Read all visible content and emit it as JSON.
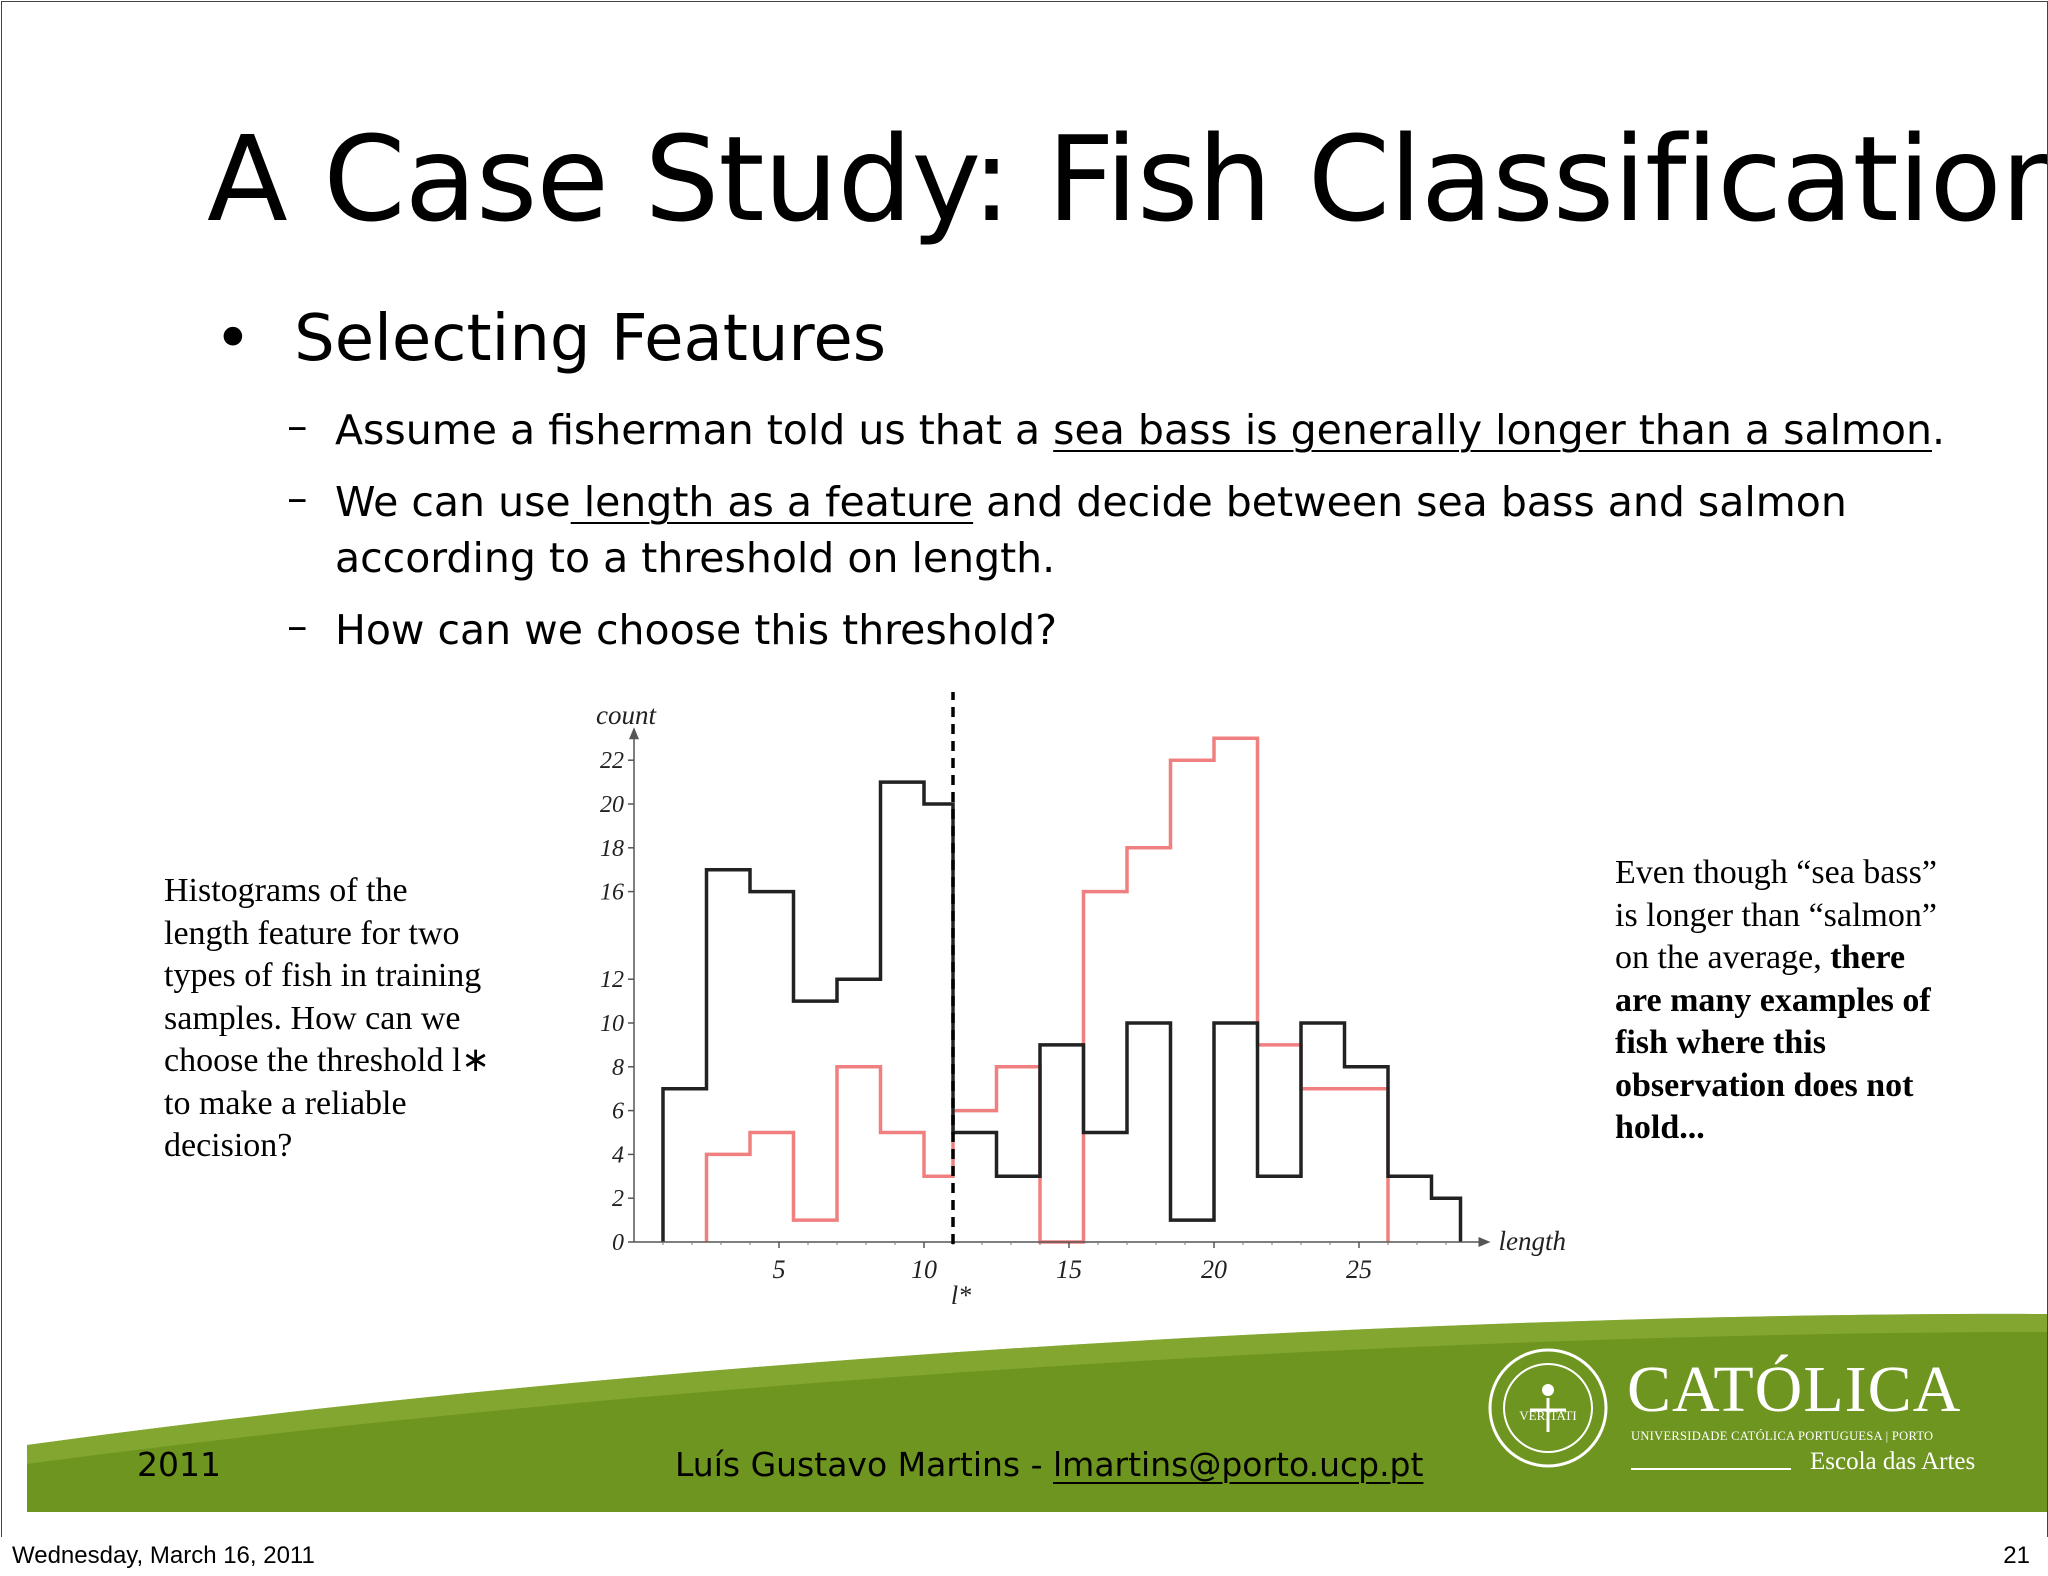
{
  "slide": {
    "title": "A Case Study: Fish Classification",
    "bullet": {
      "marker": "•",
      "text": "Selecting Features"
    },
    "subbullets": [
      {
        "dash": "–",
        "parts": [
          {
            "text": "Assume a fisherman told us that a ",
            "u": false
          },
          {
            "text": "sea bass is generally longer than a salmon",
            "u": true
          },
          {
            "text": ".",
            "u": false
          }
        ]
      },
      {
        "dash": "–",
        "parts": [
          {
            "text": "We can use",
            "u": false
          },
          {
            "text": " length as a feature",
            "u": true
          },
          {
            "text": " and decide between sea bass and salmon",
            "u": false
          }
        ],
        "line2": "according to a threshold on length."
      },
      {
        "dash": "–",
        "parts": [
          {
            "text": "How can we choose this threshold?",
            "u": false
          }
        ]
      }
    ],
    "left_note": "Histograms of the length feature for two types of fish in training samples. How can we choose the threshold l∗ to make a reliable decision?",
    "right_note": {
      "normal": "Even though “sea bass” is longer than “salmon” on the average, ",
      "bold": "there are many examples of fish where this observation does not hold..."
    },
    "footer": {
      "year": "2011",
      "author": "Luís Gustavo Martins - ",
      "email": "lmartins@porto.ucp.pt",
      "brand_name": "CATÓLICA",
      "brand_univ": "UNIVERSIDADE CATÓLICA PORTUGUESA | PORTO",
      "brand_school": "Escola das Artes",
      "seal_text": "VERITATI",
      "colors": {
        "bar": "#6e951f",
        "bar_light": "#8fb23a"
      }
    }
  },
  "status_bar": {
    "date": "Wednesday, March 16, 2011",
    "page": "21"
  },
  "chart_data": {
    "type": "bar",
    "subtype": "step-histogram",
    "xlabel": "length",
    "ylabel": "count",
    "xlim": [
      0,
      28.5
    ],
    "ylim": [
      0,
      22
    ],
    "x_ticks": [
      5,
      10,
      15,
      20,
      25
    ],
    "y_ticks": [
      0,
      2,
      4,
      6,
      8,
      10,
      12,
      16,
      18,
      20,
      22
    ],
    "grid": false,
    "threshold": {
      "label": "l*",
      "x": 11
    },
    "series": [
      {
        "name": "salmon",
        "color": "#222222",
        "bin_edges": [
          1,
          2.5,
          4,
          5.5,
          7,
          8.5,
          10,
          11,
          12.5,
          14,
          15.5,
          17,
          18.5,
          20,
          21.5,
          23,
          24.5,
          26,
          27.5,
          28.5
        ],
        "values": [
          7,
          17,
          16,
          11,
          12,
          21,
          20,
          5,
          3,
          9,
          5,
          10,
          1,
          10,
          3,
          10,
          8,
          3,
          2
        ]
      },
      {
        "name": "sea bass",
        "color": "#f08080",
        "bin_edges": [
          2.5,
          4,
          5.5,
          7,
          8.5,
          10,
          11,
          12.5,
          14,
          15.5,
          17,
          18.5,
          20,
          21.5,
          23,
          24.5,
          26
        ],
        "values": [
          4,
          5,
          1,
          8,
          5,
          3,
          6,
          8,
          0,
          16,
          18,
          22,
          23,
          9,
          7,
          7
        ]
      }
    ]
  }
}
